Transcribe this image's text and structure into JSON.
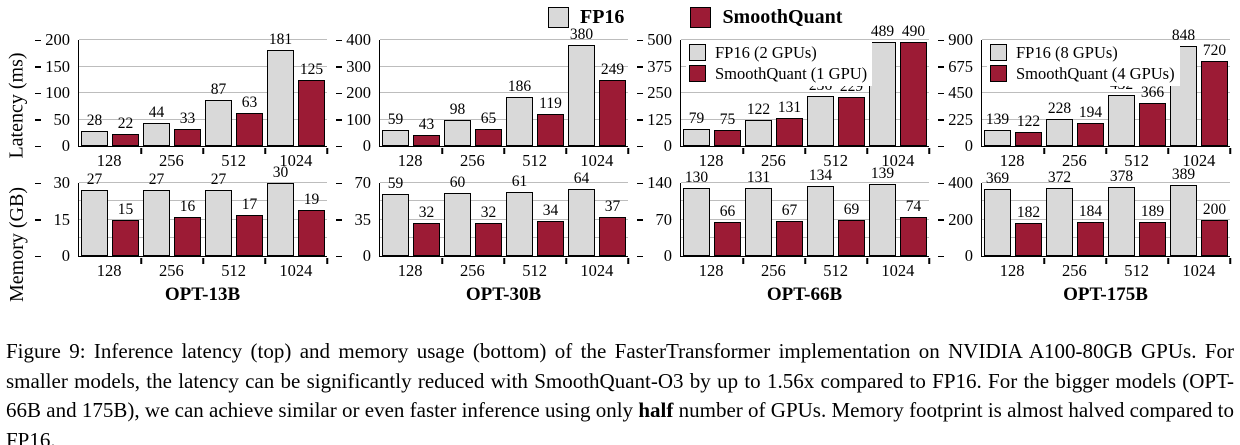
{
  "colors": {
    "fp16": "#d9d9d9",
    "smoothquant": "#9c1b35",
    "gridline": "#bdbdbd",
    "axis": "#000000"
  },
  "top_legend": [
    {
      "label": "FP16",
      "color_key": "fp16"
    },
    {
      "label": "SmoothQuant",
      "color_key": "smoothquant"
    }
  ],
  "row_labels": {
    "latency": "Latency (ms)",
    "memory": "Memory (GB)"
  },
  "caption": {
    "prefix": "Figure 9: Inference latency (top) and memory usage (bottom) of the FasterTransformer implementation on NVIDIA A100-80GB GPUs. For smaller models, the latency can be significantly reduced with SmoothQuant-O3 by up to 1.56x compared to FP16. For the bigger models (OPT-66B and 175B), we can achieve similar or even faster inference using only ",
    "bold": "half",
    "suffix": " number of GPUs. Memory footprint is almost halved compared to FP16."
  },
  "chart_data": [
    {
      "id": "opt13b-latency",
      "type": "bar",
      "row": "latency",
      "title": "",
      "ylabel": "Latency (ms)",
      "categories": [
        "128",
        "256",
        "512",
        "1024"
      ],
      "series": [
        {
          "name": "FP16",
          "color_key": "fp16",
          "values": [
            28,
            44,
            87,
            181
          ]
        },
        {
          "name": "SmoothQuant",
          "color_key": "smoothquant",
          "values": [
            22,
            33,
            63,
            125
          ]
        }
      ],
      "ylim": [
        0,
        200
      ],
      "yticks": [
        0,
        50,
        100,
        150,
        200
      ],
      "grid": true,
      "inner_legend": null
    },
    {
      "id": "opt30b-latency",
      "type": "bar",
      "row": "latency",
      "title": "",
      "ylabel": "Latency (ms)",
      "categories": [
        "128",
        "256",
        "512",
        "1024"
      ],
      "series": [
        {
          "name": "FP16",
          "color_key": "fp16",
          "values": [
            59,
            98,
            186,
            380
          ]
        },
        {
          "name": "SmoothQuant",
          "color_key": "smoothquant",
          "values": [
            43,
            65,
            119,
            249
          ]
        }
      ],
      "ylim": [
        0,
        400
      ],
      "yticks": [
        0,
        100,
        200,
        300,
        400
      ],
      "grid": true,
      "inner_legend": null
    },
    {
      "id": "opt66b-latency",
      "type": "bar",
      "row": "latency",
      "title": "",
      "ylabel": "Latency (ms)",
      "categories": [
        "128",
        "256",
        "512",
        "1024"
      ],
      "series": [
        {
          "name": "FP16 (2 GPUs)",
          "color_key": "fp16",
          "values": [
            79,
            122,
            236,
            489
          ]
        },
        {
          "name": "SmoothQuant (1 GPU)",
          "color_key": "smoothquant",
          "values": [
            75,
            131,
            229,
            490
          ]
        }
      ],
      "ylim": [
        0,
        500
      ],
      "yticks": [
        0,
        125,
        250,
        375,
        500
      ],
      "grid": true,
      "inner_legend": [
        "FP16 (2 GPUs)",
        "SmoothQuant (1 GPU)"
      ]
    },
    {
      "id": "opt175b-latency",
      "type": "bar",
      "row": "latency",
      "title": "",
      "ylabel": "Latency (ms)",
      "categories": [
        "128",
        "256",
        "512",
        "1024"
      ],
      "series": [
        {
          "name": "FP16 (8 GPUs)",
          "color_key": "fp16",
          "values": [
            139,
            228,
            432,
            848
          ]
        },
        {
          "name": "SmoothQuant (4 GPUs)",
          "color_key": "smoothquant",
          "values": [
            122,
            194,
            366,
            720
          ]
        }
      ],
      "ylim": [
        0,
        900
      ],
      "yticks": [
        0,
        225,
        450,
        675,
        900
      ],
      "grid": true,
      "inner_legend": [
        "FP16 (8 GPUs)",
        "SmoothQuant (4 GPUs)"
      ]
    },
    {
      "id": "opt13b-memory",
      "type": "bar",
      "row": "memory",
      "title": "OPT-13B",
      "ylabel": "Memory (GB)",
      "categories": [
        "128",
        "256",
        "512",
        "1024"
      ],
      "series": [
        {
          "name": "FP16",
          "color_key": "fp16",
          "values": [
            27,
            27,
            27,
            30
          ]
        },
        {
          "name": "SmoothQuant",
          "color_key": "smoothquant",
          "values": [
            15,
            16,
            17,
            19
          ]
        }
      ],
      "ylim": [
        0,
        30
      ],
      "yticks": [
        0,
        15,
        30
      ],
      "grid": true,
      "inner_legend": null
    },
    {
      "id": "opt30b-memory",
      "type": "bar",
      "row": "memory",
      "title": "OPT-30B",
      "ylabel": "Memory (GB)",
      "categories": [
        "128",
        "256",
        "512",
        "1024"
      ],
      "series": [
        {
          "name": "FP16",
          "color_key": "fp16",
          "values": [
            59,
            60,
            61,
            64
          ]
        },
        {
          "name": "SmoothQuant",
          "color_key": "smoothquant",
          "values": [
            32,
            32,
            34,
            37
          ]
        }
      ],
      "ylim": [
        0,
        70
      ],
      "yticks": [
        0,
        35,
        70
      ],
      "grid": true,
      "inner_legend": null
    },
    {
      "id": "opt66b-memory",
      "type": "bar",
      "row": "memory",
      "title": "OPT-66B",
      "ylabel": "Memory (GB)",
      "categories": [
        "128",
        "256",
        "512",
        "1024"
      ],
      "series": [
        {
          "name": "FP16",
          "color_key": "fp16",
          "values": [
            130,
            131,
            134,
            139
          ]
        },
        {
          "name": "SmoothQuant",
          "color_key": "smoothquant",
          "values": [
            66,
            67,
            69,
            74
          ]
        }
      ],
      "ylim": [
        0,
        140
      ],
      "yticks": [
        0,
        70,
        140
      ],
      "grid": true,
      "inner_legend": null
    },
    {
      "id": "opt175b-memory",
      "type": "bar",
      "row": "memory",
      "title": "OPT-175B",
      "ylabel": "Memory (GB)",
      "categories": [
        "128",
        "256",
        "512",
        "1024"
      ],
      "series": [
        {
          "name": "FP16",
          "color_key": "fp16",
          "values": [
            369,
            372,
            378,
            389
          ]
        },
        {
          "name": "SmoothQuant",
          "color_key": "smoothquant",
          "values": [
            182,
            184,
            189,
            200
          ]
        }
      ],
      "ylim": [
        0,
        400
      ],
      "yticks": [
        0,
        200,
        400
      ],
      "grid": true,
      "inner_legend": null
    }
  ]
}
